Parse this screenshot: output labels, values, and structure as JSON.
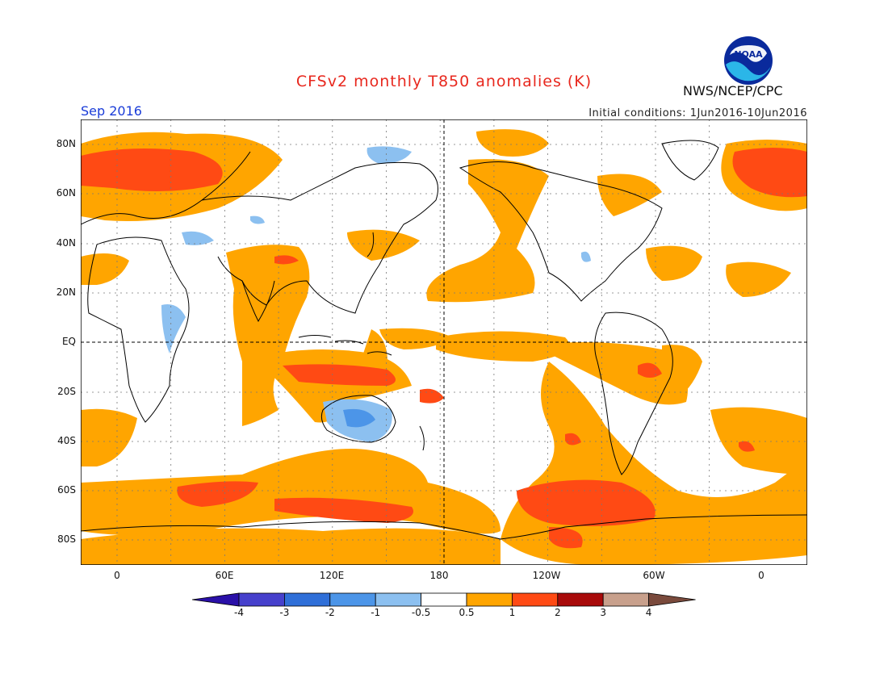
{
  "header": {
    "title": "CFSv2 monthly T850 anomalies (K)",
    "month": "Sep 2016",
    "initial_conditions": "Initial conditions: 1Jun2016-10Jun2016",
    "agency": "NWS/NCEP/CPC",
    "logo_text": "NOAA"
  },
  "map": {
    "projection": "cylindrical equidistant",
    "lat_labels": [
      "80N",
      "60N",
      "40N",
      "20N",
      "EQ",
      "20S",
      "40S",
      "60S",
      "80S"
    ],
    "lon_labels": [
      "0",
      "60E",
      "120E",
      "180",
      "120W",
      "60W",
      "0"
    ],
    "grid": "dotted, 20 deg lat / 30 deg lon",
    "reference_lines": [
      "EQ",
      "180"
    ]
  },
  "colorbar": {
    "labels": [
      "-4",
      "-3",
      "-2",
      "-1",
      "-0.5",
      "0.5",
      "1",
      "2",
      "3",
      "4"
    ],
    "colors": [
      "#2a10a8",
      "#4640cc",
      "#2f6fd8",
      "#4c95e8",
      "#8cc0f0",
      "#ffffff",
      "#ffa500",
      "#ff4a14",
      "#a80a0a",
      "#c8a08c",
      "#7a4a3c"
    ]
  },
  "colors": {
    "anom_0_5_1": "#ffa500",
    "anom_1_2": "#ff4a14",
    "anom_neg_0_5_1": "#8cc0f0",
    "anom_neg_1_2": "#4c95e8",
    "title": "#e8281e",
    "month": "#1a3cd8"
  }
}
